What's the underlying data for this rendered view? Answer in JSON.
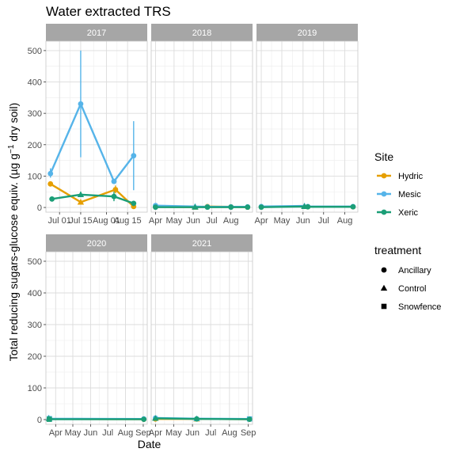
{
  "chart_data": {
    "type": "line",
    "title": "Water extracted TRS",
    "xlabel": "Date",
    "ylabel_main": "Total reducing sugars-glucose equiv. (µg g",
    "ylabel_sup": "−1",
    "ylabel_tail": " dry soil)",
    "ylim": [
      -15,
      530
    ],
    "yticks": [
      0,
      100,
      200,
      300,
      400,
      500
    ],
    "grid": true,
    "legend_placement": "right",
    "colors": {
      "Hydric": "#E69F00",
      "Mesic": "#56B4E9",
      "Xeric": "#1B9E77"
    },
    "legends": [
      {
        "title": "Site",
        "entries": [
          "Hydric",
          "Mesic",
          "Xeric"
        ]
      },
      {
        "title": "treatment",
        "entries": [
          "Ancillary",
          "Control",
          "Snowfence"
        ]
      }
    ],
    "panels": [
      {
        "label": "2017",
        "xlim": [
          "2017-06-22",
          "2017-08-28"
        ],
        "xticks": [
          {
            "label": "Jul 01",
            "date": "2017-07-01"
          },
          {
            "label": "Jul 15",
            "date": "2017-07-15"
          },
          {
            "label": "Aug 01",
            "date": "2017-08-01"
          },
          {
            "label": "Aug 15",
            "date": "2017-08-15"
          }
        ],
        "series": [
          {
            "name": "Hydric",
            "points": [
              {
                "date": "2017-06-25",
                "y": 75,
                "treatment": "Ancillary"
              },
              {
                "date": "2017-07-15",
                "y": 17,
                "treatment": "Control"
              },
              {
                "date": "2017-08-07",
                "y": 57,
                "err": [
                  45,
                  70
                ],
                "treatment": "Ancillary"
              },
              {
                "date": "2017-08-19",
                "y": 3,
                "treatment": "Ancillary"
              }
            ]
          },
          {
            "name": "Mesic",
            "points": [
              {
                "date": "2017-06-25",
                "y": 108,
                "err": [
                  95,
                  125
                ],
                "treatment": "Ancillary"
              },
              {
                "date": "2017-07-15",
                "y": 330,
                "err": [
                  160,
                  500
                ],
                "treatment": "Ancillary"
              },
              {
                "date": "2017-08-06",
                "y": 83,
                "err": [
                  75,
                  90
                ],
                "treatment": "Ancillary"
              },
              {
                "date": "2017-08-19",
                "y": 165,
                "err": [
                  55,
                  275
                ],
                "treatment": "Ancillary"
              }
            ]
          },
          {
            "name": "Xeric",
            "points": [
              {
                "date": "2017-06-26",
                "y": 27,
                "treatment": "Ancillary"
              },
              {
                "date": "2017-07-15",
                "y": 41,
                "err": [
                  33,
                  50
                ],
                "treatment": "Control"
              },
              {
                "date": "2017-08-06",
                "y": 35,
                "err": [
                  20,
                  50
                ],
                "treatment": "Ancillary"
              },
              {
                "date": "2017-08-19",
                "y": 13,
                "treatment": "Ancillary"
              }
            ]
          }
        ]
      },
      {
        "label": "2018",
        "xlim": [
          "2018-03-25",
          "2018-09-05"
        ],
        "xticks": [
          {
            "label": "Apr",
            "date": "2018-04-01"
          },
          {
            "label": "May",
            "date": "2018-05-01"
          },
          {
            "label": "Jun",
            "date": "2018-06-01"
          },
          {
            "label": "Jul",
            "date": "2018-07-01"
          },
          {
            "label": "Aug",
            "date": "2018-08-01"
          }
        ],
        "series": [
          {
            "name": "Hydric",
            "points": [
              {
                "date": "2018-04-01",
                "y": 2,
                "treatment": "Ancillary"
              },
              {
                "date": "2018-06-04",
                "y": 1,
                "treatment": "Control"
              },
              {
                "date": "2018-06-24",
                "y": 3,
                "treatment": "Ancillary"
              },
              {
                "date": "2018-08-01",
                "y": 2,
                "treatment": "Ancillary"
              },
              {
                "date": "2018-08-28",
                "y": 1,
                "treatment": "Ancillary"
              }
            ]
          },
          {
            "name": "Mesic",
            "points": [
              {
                "date": "2018-04-01",
                "y": 6,
                "treatment": "Ancillary"
              },
              {
                "date": "2018-06-04",
                "y": 3,
                "treatment": "Control"
              },
              {
                "date": "2018-06-24",
                "y": 2,
                "treatment": "Ancillary"
              },
              {
                "date": "2018-08-01",
                "y": 2,
                "treatment": "Ancillary"
              },
              {
                "date": "2018-08-28",
                "y": 2,
                "treatment": "Ancillary"
              }
            ]
          },
          {
            "name": "Xeric",
            "points": [
              {
                "date": "2018-04-01",
                "y": 1,
                "treatment": "Ancillary"
              },
              {
                "date": "2018-06-04",
                "y": 1,
                "treatment": "Control"
              },
              {
                "date": "2018-06-24",
                "y": 1,
                "treatment": "Ancillary"
              },
              {
                "date": "2018-08-01",
                "y": 1,
                "treatment": "Ancillary"
              },
              {
                "date": "2018-08-28",
                "y": 1,
                "treatment": "Ancillary"
              }
            ]
          }
        ]
      },
      {
        "label": "2019",
        "xlim": [
          "2019-03-25",
          "2019-08-20"
        ],
        "xticks": [
          {
            "label": "Apr",
            "date": "2019-04-01"
          },
          {
            "label": "May",
            "date": "2019-05-01"
          },
          {
            "label": "Jun",
            "date": "2019-06-01"
          },
          {
            "label": "Jul",
            "date": "2019-07-01"
          },
          {
            "label": "Aug",
            "date": "2019-08-01"
          }
        ],
        "series": [
          {
            "name": "Hydric",
            "points": [
              {
                "date": "2019-04-01",
                "y": 2,
                "treatment": "Ancillary"
              },
              {
                "date": "2019-06-03",
                "y": 4,
                "treatment": "Control"
              },
              {
                "date": "2019-06-08",
                "y": 2,
                "treatment": "Ancillary"
              },
              {
                "date": "2019-08-13",
                "y": 2,
                "treatment": "Ancillary"
              }
            ]
          },
          {
            "name": "Mesic",
            "points": [
              {
                "date": "2019-04-01",
                "y": 3,
                "treatment": "Ancillary"
              },
              {
                "date": "2019-06-03",
                "y": 5,
                "treatment": "Control"
              },
              {
                "date": "2019-06-08",
                "y": 3,
                "treatment": "Ancillary"
              },
              {
                "date": "2019-08-13",
                "y": 3,
                "treatment": "Ancillary"
              }
            ]
          },
          {
            "name": "Xeric",
            "points": [
              {
                "date": "2019-04-01",
                "y": 1,
                "treatment": "Ancillary"
              },
              {
                "date": "2019-06-03",
                "y": 3,
                "treatment": "Control"
              },
              {
                "date": "2019-06-08",
                "y": 2,
                "treatment": "Ancillary"
              },
              {
                "date": "2019-08-13",
                "y": 2,
                "treatment": "Ancillary"
              }
            ]
          }
        ]
      },
      {
        "label": "2020",
        "xlim": [
          "2020-03-15",
          "2020-09-08"
        ],
        "xticks": [
          {
            "label": "Apr",
            "date": "2020-04-01"
          },
          {
            "label": "May",
            "date": "2020-05-01"
          },
          {
            "label": "Jun",
            "date": "2020-06-01"
          },
          {
            "label": "Jul",
            "date": "2020-07-01"
          },
          {
            "label": "Aug",
            "date": "2020-08-01"
          },
          {
            "label": "Sep",
            "date": "2020-09-01"
          }
        ],
        "series": [
          {
            "name": "Hydric",
            "points": [
              {
                "date": "2020-03-21",
                "y": 2,
                "treatment": "Ancillary"
              },
              {
                "date": "2020-09-02",
                "y": 1,
                "treatment": "Ancillary"
              }
            ]
          },
          {
            "name": "Mesic",
            "points": [
              {
                "date": "2020-03-20",
                "y": 5,
                "treatment": "Control"
              },
              {
                "date": "2020-03-21",
                "y": 3,
                "treatment": "Snowfence"
              },
              {
                "date": "2020-09-02",
                "y": 2,
                "treatment": "Ancillary"
              }
            ]
          },
          {
            "name": "Xeric",
            "points": [
              {
                "date": "2020-03-20",
                "y": 3,
                "treatment": "Control"
              },
              {
                "date": "2020-03-21",
                "y": 1,
                "treatment": "Snowfence"
              },
              {
                "date": "2020-09-02",
                "y": 1,
                "treatment": "Ancillary"
              }
            ]
          }
        ]
      },
      {
        "label": "2021",
        "xlim": [
          "2021-03-25",
          "2021-09-08"
        ],
        "xticks": [
          {
            "label": "Apr",
            "date": "2021-04-01"
          },
          {
            "label": "May",
            "date": "2021-05-01"
          },
          {
            "label": "Jun",
            "date": "2021-06-01"
          },
          {
            "label": "Jul",
            "date": "2021-07-01"
          },
          {
            "label": "Aug",
            "date": "2021-08-01"
          },
          {
            "label": "Sep",
            "date": "2021-09-01"
          }
        ],
        "series": [
          {
            "name": "Hydric",
            "points": [
              {
                "date": "2021-04-01",
                "y": 2,
                "treatment": "Ancillary"
              },
              {
                "date": "2021-06-08",
                "y": 2,
                "treatment": "Control"
              },
              {
                "date": "2021-09-03",
                "y": 1,
                "treatment": "Ancillary"
              }
            ]
          },
          {
            "name": "Mesic",
            "points": [
              {
                "date": "2021-04-01",
                "y": 5,
                "treatment": "Ancillary"
              },
              {
                "date": "2021-06-08",
                "y": 3,
                "treatment": "Control"
              },
              {
                "date": "2021-09-03",
                "y": 2,
                "treatment": "Snowfence"
              }
            ]
          },
          {
            "name": "Xeric",
            "points": [
              {
                "date": "2021-04-01",
                "y": 4,
                "treatment": "Control"
              },
              {
                "date": "2021-06-08",
                "y": 2,
                "treatment": "Ancillary"
              },
              {
                "date": "2021-09-03",
                "y": 1,
                "treatment": "Ancillary"
              }
            ]
          }
        ]
      }
    ]
  }
}
